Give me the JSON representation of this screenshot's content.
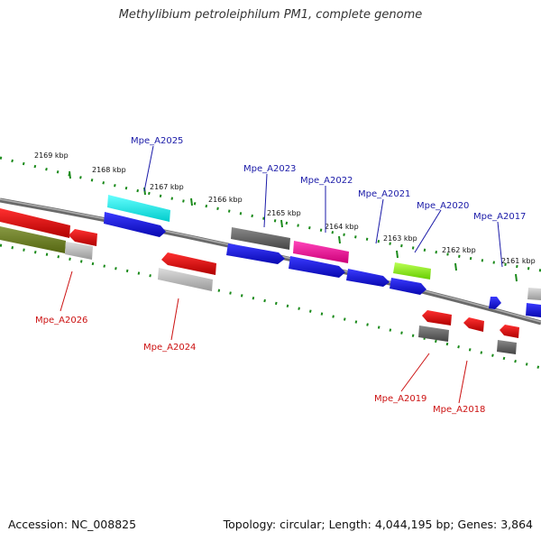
{
  "title": "Methylibium petroleiphilum PM1, complete genome",
  "footer": {
    "accession": "Accession: NC_008825",
    "summary": "Topology: circular; Length: 4,044,195 bp; Genes: 3,864"
  },
  "kbp_labels": [
    "2169 kbp",
    "2168 kbp",
    "2167 kbp",
    "2166 kbp",
    "2165 kbp",
    "2164 kbp",
    "2163 kbp",
    "2162 kbp",
    "2161 kbp"
  ],
  "gene_labels_top": [
    "Mpe_A2025",
    "Mpe_A2023",
    "Mpe_A2022",
    "Mpe_A2021",
    "Mpe_A2020",
    "Mpe_A2017"
  ],
  "gene_labels_bottom": [
    "Mpe_A2026",
    "Mpe_A2024",
    "Mpe_A2019",
    "Mpe_A2018"
  ],
  "colors": {
    "forward_label": "#1a1aa8",
    "reverse_label": "#cc1111",
    "backbone": "#888888",
    "tick": "#1a8a1a",
    "cds_blue": "#1010e8",
    "cds_red": "#ee1111",
    "cds_cyan": "#22eeee",
    "cds_magenta": "#ee1199",
    "cds_lime": "#88ee22",
    "cds_olive": "#668822",
    "cds_gray": "#666666",
    "cds_light_gray": "#bbbbbb"
  }
}
